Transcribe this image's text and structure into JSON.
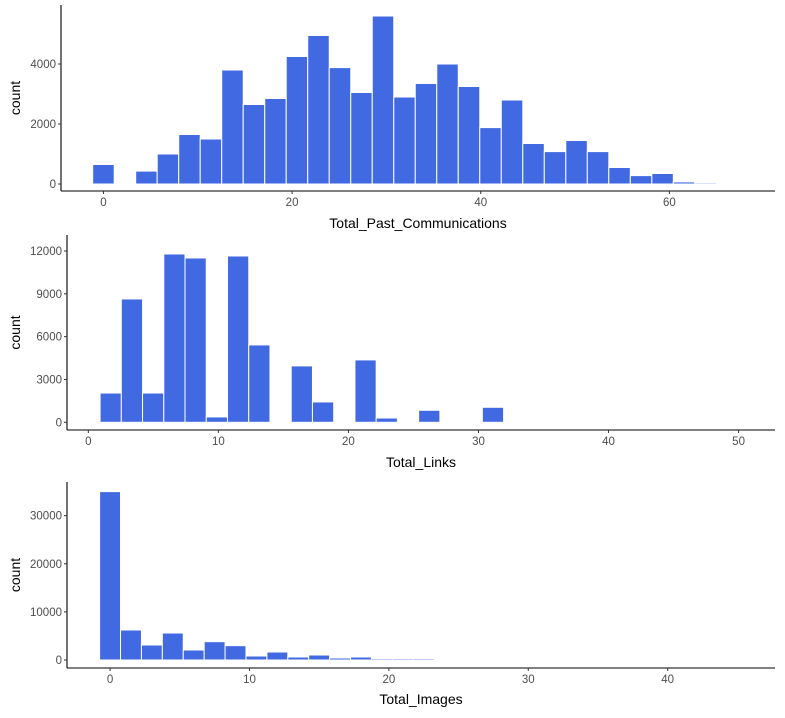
{
  "chart_data": [
    {
      "type": "bar",
      "subtype": "histogram",
      "xlabel": "Total_Past_Communications",
      "ylabel": "count",
      "bin_width": 2.28,
      "bin_centers_start": 0,
      "values": [
        650,
        0,
        430,
        1000,
        1650,
        1500,
        3800,
        2650,
        2850,
        4250,
        4950,
        3880,
        3050,
        5600,
        2900,
        3350,
        4000,
        3250,
        1880,
        2800,
        1350,
        1080,
        1450,
        1080,
        550,
        280,
        350,
        70,
        40
      ],
      "xlim": [
        -4.5,
        71.2
      ],
      "ylim": [
        -233,
        5967
      ],
      "xticks": [
        "0",
        "20",
        "40",
        "60"
      ],
      "yticks": [
        "0",
        "2000",
        "4000"
      ],
      "grid": false,
      "bar_color": "#4169E1"
    },
    {
      "type": "bar",
      "subtype": "histogram",
      "xlabel": "Total_Links",
      "ylabel": "count",
      "bin_width": 1.633,
      "bin_centers_start": 1.72,
      "values": [
        2050,
        8640,
        2050,
        11790,
        11510,
        375,
        11650,
        5420,
        0,
        3950,
        1425,
        0,
        4370,
        300,
        0,
        840,
        70,
        0,
        1050,
        0,
        0,
        0,
        0,
        0,
        70
      ],
      "xlim": [
        -1.64,
        52.8
      ],
      "ylim": [
        -540,
        13120
      ],
      "xticks": [
        "0",
        "10",
        "20",
        "30",
        "40",
        "50"
      ],
      "yticks": [
        "0",
        "3000",
        "6000",
        "9000",
        "12000"
      ],
      "grid": false,
      "bar_color": "#4169E1"
    },
    {
      "type": "bar",
      "subtype": "histogram",
      "xlabel": "Total_Images",
      "ylabel": "count",
      "bin_width": 1.5,
      "bin_centers_start": 0,
      "values": [
        35000,
        6240,
        3120,
        5610,
        2080,
        3810,
        2980,
        830,
        1660,
        620,
        1040,
        420,
        620,
        280,
        280,
        280
      ],
      "xlim": [
        -3.09,
        47.7
      ],
      "ylim": [
        -1660,
        37000
      ],
      "xticks": [
        "0",
        "10",
        "20",
        "30",
        "40"
      ],
      "yticks": [
        "0",
        "10000",
        "20000",
        "30000"
      ],
      "grid": false,
      "bar_color": "#4169E1"
    }
  ]
}
